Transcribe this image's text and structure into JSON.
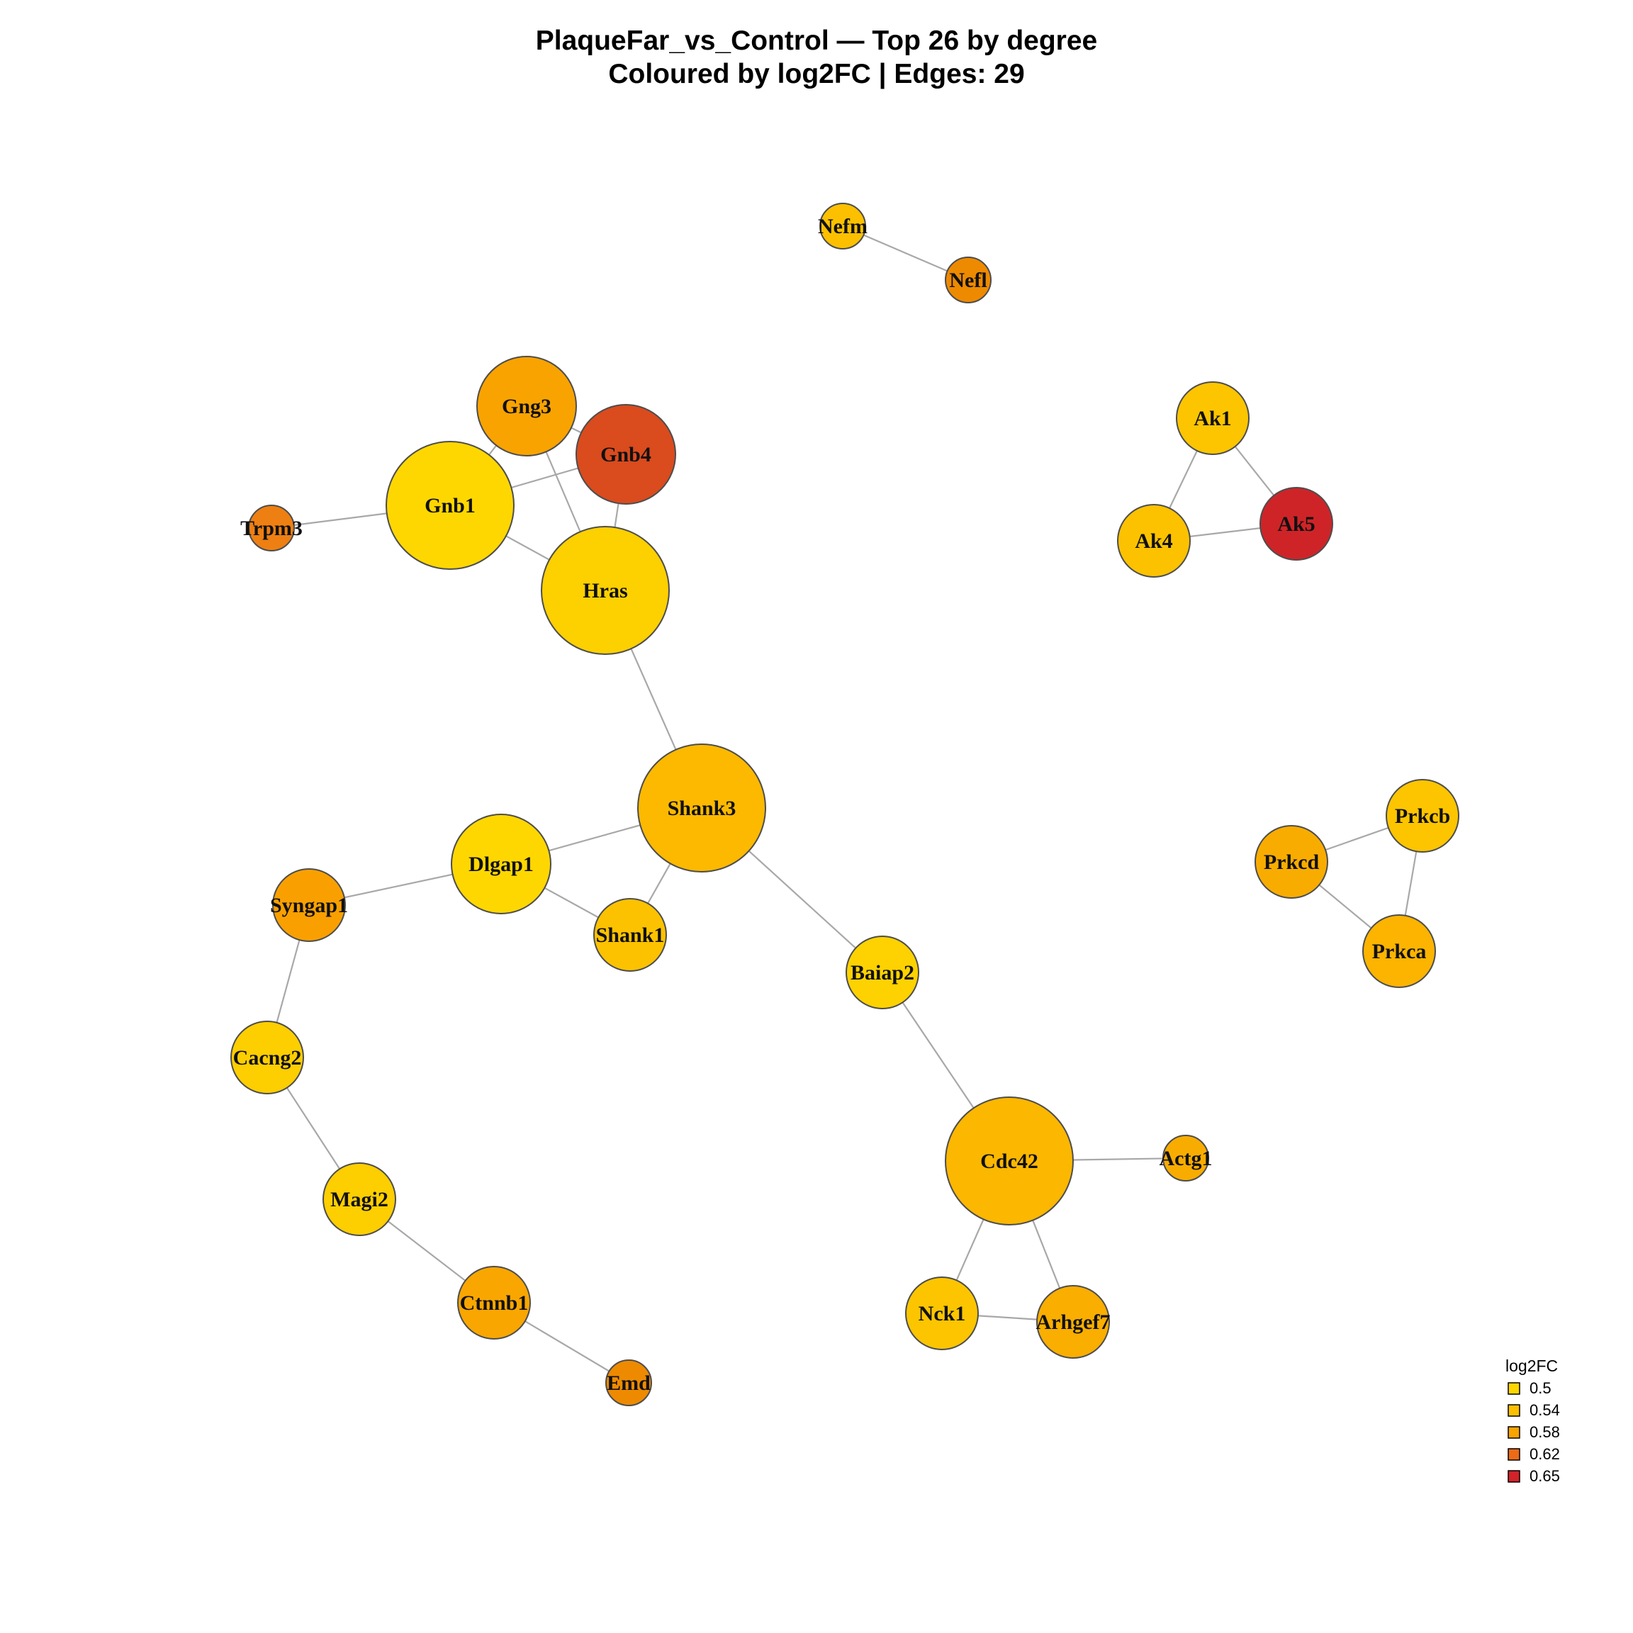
{
  "title": {
    "line1": "PlaqueFar_vs_Control — Top 26 by degree",
    "line2": "Coloured by log2FC | Edges: 29"
  },
  "legend": {
    "title": "log2FC",
    "items": [
      {
        "label": "0.5",
        "color": "#FFD700"
      },
      {
        "label": "0.54",
        "color": "#FCC000"
      },
      {
        "label": "0.58",
        "color": "#F9A300"
      },
      {
        "label": "0.62",
        "color": "#EB6B17"
      },
      {
        "label": "0.65",
        "color": "#D2222A"
      }
    ]
  },
  "nodes": [
    {
      "id": "Nefm",
      "color": "#FCC000",
      "degree": 1
    },
    {
      "id": "Nefl",
      "color": "#EE8A00",
      "degree": 1
    },
    {
      "id": "Gng3",
      "color": "#F9A300",
      "degree": 3
    },
    {
      "id": "Gnb4",
      "color": "#DA4B1E",
      "degree": 3
    },
    {
      "id": "Gnb1",
      "color": "#FFD700",
      "degree": 4
    },
    {
      "id": "Trpm3",
      "color": "#EE7F12",
      "degree": 1
    },
    {
      "id": "Hras",
      "color": "#FDD000",
      "degree": 4
    },
    {
      "id": "Ak1",
      "color": "#FCC500",
      "degree": 2
    },
    {
      "id": "Ak4",
      "color": "#FCC200",
      "degree": 2
    },
    {
      "id": "Ak5",
      "color": "#CE2428",
      "degree": 2
    },
    {
      "id": "Shank3",
      "color": "#FCB900",
      "degree": 4
    },
    {
      "id": "Dlgap1",
      "color": "#FFD700",
      "degree": 3
    },
    {
      "id": "Shank1",
      "color": "#FCC200",
      "degree": 2
    },
    {
      "id": "Syngap1",
      "color": "#F9A000",
      "degree": 2
    },
    {
      "id": "Baiap2",
      "color": "#FDD200",
      "degree": 2
    },
    {
      "id": "Prkcb",
      "color": "#FCC500",
      "degree": 2
    },
    {
      "id": "Prkcd",
      "color": "#F9AC00",
      "degree": 2
    },
    {
      "id": "Prkca",
      "color": "#FCB400",
      "degree": 2
    },
    {
      "id": "Cacng2",
      "color": "#FDCE00",
      "degree": 2
    },
    {
      "id": "Cdc42",
      "color": "#FCB700",
      "degree": 4
    },
    {
      "id": "Actg1",
      "color": "#F9AC00",
      "degree": 1
    },
    {
      "id": "Magi2",
      "color": "#FDCE00",
      "degree": 2
    },
    {
      "id": "Nck1",
      "color": "#FCC500",
      "degree": 2
    },
    {
      "id": "Arhgef7",
      "color": "#F9AE00",
      "degree": 2
    },
    {
      "id": "Ctnnb1",
      "color": "#F9A600",
      "degree": 2
    },
    {
      "id": "Emd",
      "color": "#EE8A00",
      "degree": 1
    }
  ],
  "edges": [
    [
      "Nefm",
      "Nefl"
    ],
    [
      "Gng3",
      "Gnb1"
    ],
    [
      "Gng3",
      "Gnb4"
    ],
    [
      "Gng3",
      "Hras"
    ],
    [
      "Gnb1",
      "Gnb4"
    ],
    [
      "Gnb1",
      "Hras"
    ],
    [
      "Gnb1",
      "Trpm3"
    ],
    [
      "Gnb4",
      "Hras"
    ],
    [
      "Hras",
      "Shank3"
    ],
    [
      "Ak1",
      "Ak4"
    ],
    [
      "Ak1",
      "Ak5"
    ],
    [
      "Ak4",
      "Ak5"
    ],
    [
      "Shank3",
      "Dlgap1"
    ],
    [
      "Shank3",
      "Shank1"
    ],
    [
      "Shank3",
      "Baiap2"
    ],
    [
      "Dlgap1",
      "Shank1"
    ],
    [
      "Dlgap1",
      "Syngap1"
    ],
    [
      "Syngap1",
      "Cacng2"
    ],
    [
      "Cacng2",
      "Magi2"
    ],
    [
      "Magi2",
      "Ctnnb1"
    ],
    [
      "Ctnnb1",
      "Emd"
    ],
    [
      "Baiap2",
      "Cdc42"
    ],
    [
      "Cdc42",
      "Actg1"
    ],
    [
      "Cdc42",
      "Nck1"
    ],
    [
      "Cdc42",
      "Arhgef7"
    ],
    [
      "Nck1",
      "Arhgef7"
    ],
    [
      "Prkcb",
      "Prkcd"
    ],
    [
      "Prkcb",
      "Prkca"
    ],
    [
      "Prkcd",
      "Prkca"
    ]
  ]
}
